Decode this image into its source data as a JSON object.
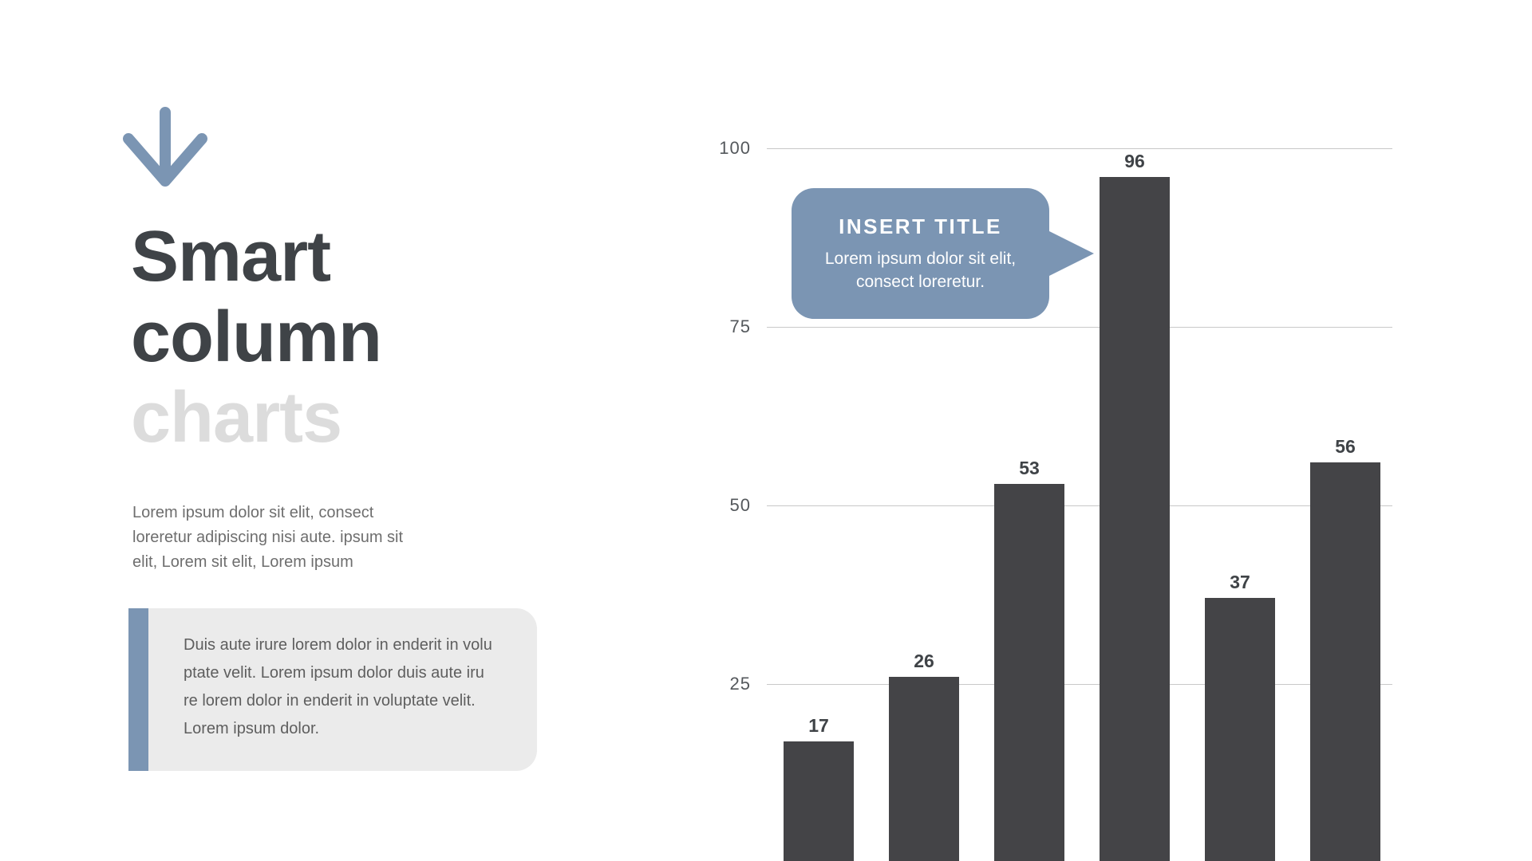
{
  "theme": {
    "accent": "#7b95b3",
    "bar": "#444447",
    "grid": "#c8c8c8",
    "heading": "#3f4347",
    "heading-muted": "#dcdcdc",
    "body-text": "#6e6e6e",
    "quote-text": "#5e5e5e",
    "quote-bg": "#ebebeb",
    "axis-text": "#54585c"
  },
  "left_panel": {
    "arrow_icon": "down-arrow",
    "title_line1": "Smart",
    "title_line2": "column",
    "title_line3": "charts",
    "paragraph_lines": [
      "Lorem ipsum dolor sit elit, consect",
      "loreretur adipiscing nisi aute. ipsum sit",
      "elit, Lorem sit elit, Lorem ipsum"
    ],
    "quote_lines": [
      "Duis aute irure lorem dolor in enderit in volu",
      "ptate velit. Lorem ipsum dolor duis aute iru",
      "re lorem dolor in enderit in voluptate velit.",
      "Lorem ipsum dolor."
    ]
  },
  "callout": {
    "title": "INSERT TITLE",
    "body_line1": "Lorem ipsum dolor sit elit,",
    "body_line2": "consect loreretur."
  },
  "chart_data": {
    "type": "bar",
    "categories": [
      "",
      "",
      "",
      "",
      "",
      ""
    ],
    "values": [
      17,
      26,
      53,
      96,
      37,
      56
    ],
    "title": "",
    "xlabel": "",
    "ylabel": "",
    "ylim": [
      0,
      100
    ],
    "yticks": [
      100,
      75,
      50,
      25
    ],
    "grid": true,
    "legend": "none",
    "bar_color": "#444447",
    "value_labels_shown": true
  }
}
